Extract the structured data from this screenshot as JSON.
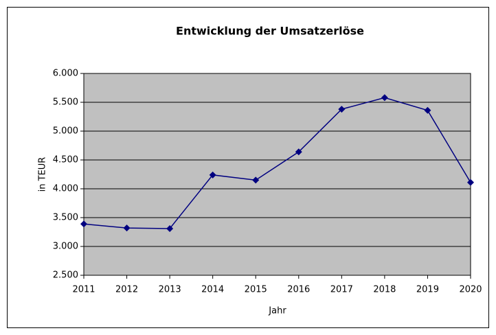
{
  "chart_data": {
    "type": "line",
    "title": "Entwicklung der Umsatzerlöse",
    "x_label": "Jahr",
    "y_label": "in TEUR",
    "x": [
      2011,
      2012,
      2013,
      2014,
      2015,
      2016,
      2017,
      2018,
      2019,
      2020
    ],
    "xlim": [
      2011,
      2020
    ],
    "xticks": [
      2011,
      2012,
      2013,
      2014,
      2015,
      2016,
      2017,
      2018,
      2019,
      2020
    ],
    "series": [
      {
        "name": "Umsatzerlöse",
        "color": "#000080",
        "values": [
          3390,
          3320,
          3310,
          4240,
          4150,
          4640,
          5380,
          5580,
          5360,
          4110
        ]
      }
    ],
    "ylim": [
      2500,
      6000
    ],
    "yticks": [
      {
        "value": 2500,
        "label": "2.500"
      },
      {
        "value": 3000,
        "label": "3.000"
      },
      {
        "value": 3500,
        "label": "3.500"
      },
      {
        "value": 4000,
        "label": "4.000"
      },
      {
        "value": 4500,
        "label": "4.500"
      },
      {
        "value": 5000,
        "label": "5.000"
      },
      {
        "value": 5500,
        "label": "5.500"
      },
      {
        "value": 6000,
        "label": "6.000"
      }
    ],
    "grid": true,
    "plot_background": "#c0c0c0"
  }
}
